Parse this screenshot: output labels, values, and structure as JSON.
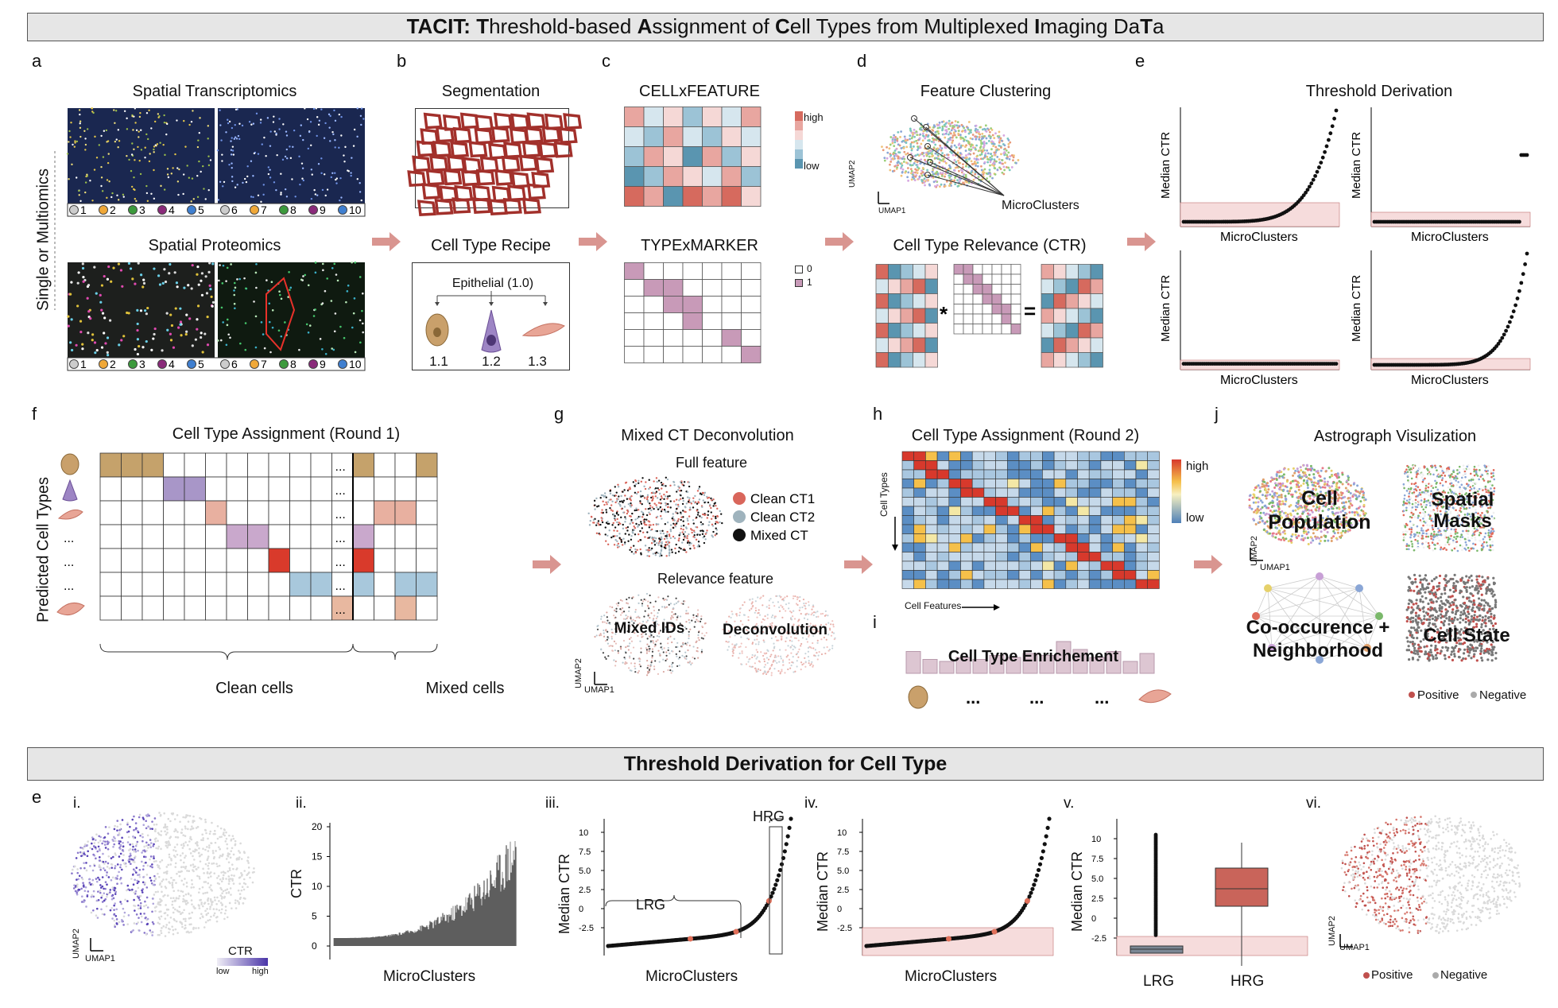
{
  "banner_top": {
    "parts": [
      {
        "t": "TACIT: ",
        "b": true
      },
      {
        "t": "T",
        "b": true
      },
      {
        "t": "hreshold-based ",
        "b": false
      },
      {
        "t": "A",
        "b": true
      },
      {
        "t": "ssignment of ",
        "b": false
      },
      {
        "t": "C",
        "b": true
      },
      {
        "t": "ell Types from Multiplexed ",
        "b": false
      },
      {
        "t": "I",
        "b": true
      },
      {
        "t": "maging Da",
        "b": false
      },
      {
        "t": "T",
        "b": true
      },
      {
        "t": "a",
        "b": false
      }
    ]
  },
  "banner_bottom": "Threshold Derivation for Cell Type",
  "panel_letters": {
    "a": "a",
    "b": "b",
    "c": "c",
    "d": "d",
    "e": "e",
    "f": "f",
    "g": "g",
    "h": "h",
    "i": "i",
    "j": "j",
    "e2": "e"
  },
  "panel_a": {
    "title_st": "Spatial Transcriptomics",
    "title_sp": "Spatial Proteomics",
    "side_label": "Single or Multiomics",
    "legend_left": [
      "1",
      "2",
      "3",
      "4",
      "5"
    ],
    "legend_right": [
      "6",
      "7",
      "8",
      "9",
      "10"
    ],
    "legend_colors": [
      "#cccccc",
      "#f0a838",
      "#3c9a3c",
      "#8a2a7a",
      "#3f7fd0",
      "#cccccc",
      "#f0a838",
      "#3c9a3c",
      "#8a2a7a",
      "#3f7fd0"
    ]
  },
  "panel_b": {
    "title_seg": "Segmentation",
    "title_recipe": "Cell Type Recipe",
    "root": "Epithelial (1.0)",
    "children": [
      "1.1",
      "1.2",
      "1.3"
    ]
  },
  "panel_c": {
    "title_cf": "CELLxFEATURE",
    "title_tm": "TYPExMARKER",
    "legend_high": "high",
    "legend_low": "low",
    "legend_0": "0",
    "legend_1": "1"
  },
  "panel_d": {
    "title_fc": "Feature Clustering",
    "microclusters": "MicroClusters",
    "umap1": "UMAP1",
    "umap2": "UMAP2",
    "title_ctr": "Cell Type Relevance (CTR)",
    "op_mul": "*",
    "op_eq": "="
  },
  "panel_e": {
    "title": "Threshold Derivation",
    "ylabel": "Median CTR",
    "xlabel": "MicroClusters"
  },
  "panel_f": {
    "title": "Cell Type Assignment (Round 1)",
    "ylabel": "Predicted Cell Types",
    "dots": "...",
    "clean": "Clean cells",
    "mixed": "Mixed cells"
  },
  "panel_g": {
    "title": "Mixed CT Deconvolution",
    "full": "Full feature",
    "relevance": "Relevance feature",
    "mixed_ids": "Mixed IDs",
    "deconv": "Deconvolution",
    "umap1": "UMAP1",
    "umap2": "UMAP2",
    "legend": [
      {
        "label": "Clean CT1",
        "color": "#d9665b"
      },
      {
        "label": "Clean CT2",
        "color": "#9fb3bd"
      },
      {
        "label": "Mixed CT",
        "color": "#111111"
      }
    ]
  },
  "panel_h": {
    "title": "Cell Type Assignment (Round 2)",
    "ylabel": "Cell Types",
    "xlabel": "Cell Features",
    "high": "high",
    "low": "low"
  },
  "panel_i": {
    "label": "Cell Type Enrichement",
    "dots": "...",
    "bars": [
      0.55,
      0.35,
      0.3,
      0.4,
      0.35,
      0.45,
      0.4,
      0.5,
      0.45,
      0.8,
      0.6,
      0.4,
      0.55,
      0.3,
      0.5
    ]
  },
  "panel_j": {
    "title": "Astrograph Visulization",
    "cell_pop": "Cell\nPopulation",
    "spatial": "Spatial\nMasks",
    "cooc": "Co-occurence +\nNeighborhood",
    "state": "Cell State",
    "positive": "Positive",
    "negative": "Negative",
    "umap1": "UMAP1",
    "umap2": "UMAP2"
  },
  "panel_e2": {
    "i": "i.",
    "ii": "ii.",
    "iii": "iii.",
    "iv": "iv.",
    "v": "v.",
    "vi": "vi.",
    "ctr": "CTR",
    "low": "low",
    "high": "high",
    "umap1": "UMAP1",
    "umap2": "UMAP2",
    "ii_ylabel": "CTR",
    "ii_xlabel": "MicroClusters",
    "ii_ticks": [
      "20",
      "15",
      "10",
      "5",
      "0"
    ],
    "iii_ylabel": "Median CTR",
    "iii_xlabel": "MicroClusters",
    "iii_ticks": [
      "10",
      "7.5",
      "5.0",
      "2.5",
      "0",
      "-2.5"
    ],
    "lrg": "LRG",
    "hrg": "HRG",
    "iv_ylabel": "Median CTR",
    "iv_xlabel": "MicroClusters",
    "iv_ticks": [
      "10",
      "7.5",
      "5.0",
      "2.5",
      "0",
      "-2.5"
    ],
    "v_ylabel": "Median CTR",
    "v_ticks": [
      "10",
      "7.5",
      "5.0",
      "2.5",
      "0",
      "-2.5"
    ],
    "v_cats": [
      "LRG",
      "HRG"
    ],
    "positive": "Positive",
    "negative": "Negative"
  }
}
